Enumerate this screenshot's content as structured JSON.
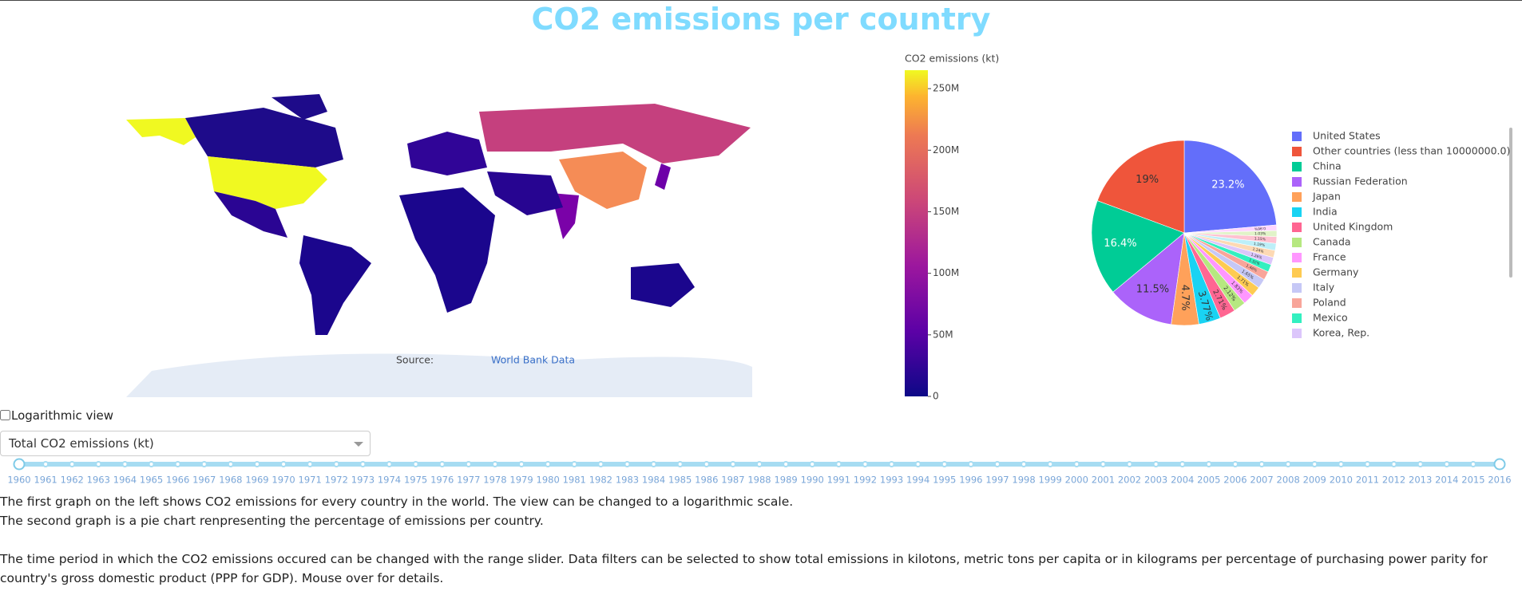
{
  "header": {
    "title": "CO2 emissions per country"
  },
  "map": {
    "colorbar": {
      "title": "CO2 emissions (kt)",
      "ylim": [
        0,
        265000000
      ],
      "yticks": [
        0,
        {
          "value": 50000000,
          "label": "50M"
        },
        {
          "value": 100000000,
          "label": "100M"
        },
        {
          "value": 150000000,
          "label": "150M"
        },
        {
          "value": 200000000,
          "label": "200M"
        },
        {
          "value": 250000000,
          "label": "250M"
        }
      ]
    },
    "annotation": {
      "label": "Source:",
      "link": "World Bank Data"
    }
  },
  "chart_data": {
    "type": "pie",
    "categories": [
      "United States",
      "Other countries (less than 10000000.0)",
      "China",
      "Russian Federation",
      "Japan",
      "India",
      "United Kingdom",
      "Canada",
      "France",
      "Germany",
      "Italy",
      "Poland",
      "Mexico",
      "Korea, Rep.",
      null,
      null,
      null,
      null,
      null
    ],
    "values": [
      23.2,
      19,
      16.4,
      11.5,
      4.7,
      3.77,
      2.71,
      2.12,
      1.83,
      1.71,
      1.65,
      1.46,
      1.32,
      1.26,
      1.24,
      1.19,
      1.15,
      1.03,
      0.96
    ],
    "value_labels": [
      "23.2%",
      "19%",
      "16.4%",
      "11.5%",
      "4.7%",
      "3.77%",
      "2.71%",
      "2.12%",
      "1.83%",
      "1.71%",
      "1.65%",
      "1.46%",
      "1.32%",
      "1.26%",
      "1.24%",
      "1.19%",
      "1.15%",
      "1.03%",
      "0.96%"
    ],
    "colors": [
      "#636efa",
      "#ef553b",
      "#00cc96",
      "#ab63fa",
      "#ffa15a",
      "#19d3f3",
      "#ff6692",
      "#b6e880",
      "#ff97ff",
      "#fecb52",
      "#c6c8f6",
      "#f8a59a",
      "#33f0c0",
      "#dcc6fb",
      "#fdd9b4",
      "#bdeff8",
      "#ffc2d1",
      "#e1f3c8",
      "#ffd6ff"
    ]
  },
  "controls": {
    "checkbox_label": "Logarithmic view",
    "dropdown_value": "Total CO2 emissions (kt)",
    "slider": {
      "min": 1960,
      "max": 2016,
      "marks": [
        1960,
        1961,
        1962,
        1963,
        1964,
        1965,
        1966,
        1967,
        1968,
        1969,
        1970,
        1971,
        1972,
        1973,
        1974,
        1975,
        1976,
        1977,
        1978,
        1979,
        1980,
        1981,
        1982,
        1983,
        1984,
        1985,
        1986,
        1987,
        1988,
        1989,
        1990,
        1991,
        1992,
        1993,
        1994,
        1995,
        1996,
        1997,
        1998,
        1999,
        2000,
        2001,
        2002,
        2003,
        2004,
        2005,
        2006,
        2007,
        2008,
        2009,
        2010,
        2011,
        2012,
        2013,
        2014,
        2015,
        2016
      ]
    }
  },
  "text": {
    "paragraphs": [
      "The first graph on the left shows CO2 emissions for every country in the world. The view can be changed to a logarithmic scale.",
      "The second graph is a pie chart renpresenting the percentage of emissions per country.",
      "The time period in which the CO2 emissions occured can be changed with the range slider. Data filters can be selected to show total emissions in kilotons, metric tons per capita or in kilograms per percentage of purchasing power parity for country's gross domestic product (PPP for GDP). Mouse over for details."
    ]
  }
}
